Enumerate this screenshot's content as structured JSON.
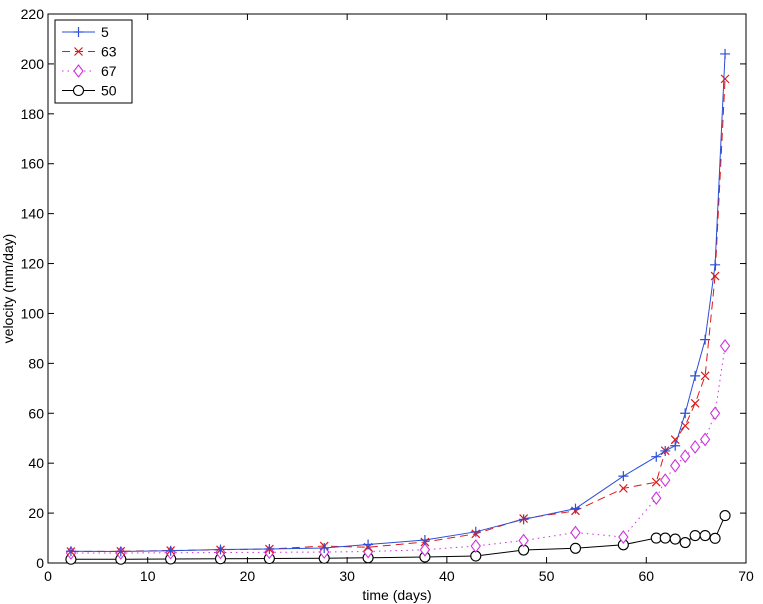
{
  "chart_data": {
    "type": "line",
    "title": "",
    "xlabel": "time (days)",
    "ylabel": "velocity (mm/day)",
    "xlim": [
      0,
      70
    ],
    "ylim": [
      0,
      220
    ],
    "xticks": [
      0,
      10,
      20,
      30,
      40,
      50,
      60,
      70
    ],
    "yticks": [
      0,
      20,
      40,
      60,
      80,
      100,
      120,
      140,
      160,
      180,
      200,
      220
    ],
    "grid": false,
    "legend_position": "top-left",
    "series": [
      {
        "name": "5",
        "color": "#2b4fd8",
        "line_style": "solid",
        "marker": "plus",
        "x": [
          2.3,
          7.3,
          12.3,
          17.3,
          22.2,
          27.7,
          32.1,
          37.8,
          42.9,
          47.7,
          52.9,
          57.7,
          61.0,
          61.9,
          62.9,
          63.9,
          64.9,
          65.9,
          66.9,
          67.9
        ],
        "y": [
          4.7,
          4.6,
          4.9,
          5.4,
          5.6,
          6.0,
          7.4,
          9.2,
          12.5,
          17.5,
          21.8,
          34.8,
          42.6,
          44.9,
          47.0,
          60.0,
          75.0,
          89.5,
          119.5,
          204.0
        ]
      },
      {
        "name": "63",
        "color": "#e01818",
        "line_style": "dashed",
        "marker": "x",
        "x": [
          2.3,
          7.3,
          12.3,
          17.3,
          22.2,
          27.7,
          32.1,
          37.8,
          42.9,
          47.7,
          52.9,
          57.7,
          61.0,
          61.9,
          62.9,
          63.9,
          64.9,
          65.9,
          66.9,
          67.9
        ],
        "y": [
          4.6,
          4.7,
          5.0,
          5.3,
          5.6,
          6.8,
          6.3,
          8.4,
          11.7,
          17.8,
          20.9,
          29.9,
          32.4,
          45.0,
          49.4,
          55.0,
          64.0,
          75.0,
          115.0,
          194.0
        ]
      },
      {
        "name": "67",
        "color": "#cc33dd",
        "line_style": "dotted",
        "marker": "diamond",
        "x": [
          2.3,
          7.3,
          12.3,
          17.3,
          22.2,
          27.7,
          32.1,
          37.8,
          42.9,
          47.7,
          52.9,
          57.7,
          61.0,
          61.9,
          62.9,
          63.9,
          64.9,
          65.9,
          66.9,
          67.9
        ],
        "y": [
          4.0,
          4.0,
          4.1,
          4.2,
          4.3,
          4.4,
          4.6,
          5.3,
          6.8,
          9.0,
          12.2,
          10.4,
          26.0,
          33.2,
          39.0,
          42.8,
          46.5,
          49.5,
          60.0,
          87.0
        ]
      },
      {
        "name": "50",
        "color": "#000000",
        "line_style": "solid",
        "marker": "circle",
        "x": [
          2.3,
          7.3,
          12.3,
          17.3,
          22.2,
          27.7,
          32.1,
          37.8,
          42.9,
          47.7,
          52.9,
          57.7,
          61.0,
          61.9,
          62.9,
          63.9,
          64.9,
          65.9,
          66.9,
          67.9
        ],
        "y": [
          1.5,
          1.5,
          1.6,
          1.7,
          1.8,
          1.9,
          2.1,
          2.4,
          2.8,
          5.2,
          5.9,
          7.3,
          10.0,
          10.0,
          9.6,
          8.2,
          11.0,
          11.0,
          9.9,
          19.0
        ]
      }
    ]
  }
}
